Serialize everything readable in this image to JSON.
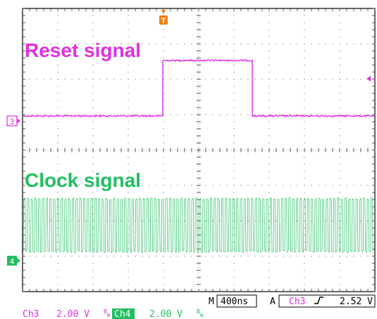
{
  "overlay": {
    "reset_label": "Reset signal",
    "clock_label": "Clock signal"
  },
  "markers": {
    "trigger_marker": "T",
    "ch3_marker": "3",
    "ch4_marker": "4"
  },
  "status": {
    "timebase_prefix": "M",
    "timebase": "400ns",
    "trigger_prefix": "A",
    "trigger_source": "Ch3",
    "trigger_slope_icon": "rising-edge-icon",
    "trigger_level": "2.52 V",
    "ch3_label": "Ch3",
    "ch3_scale": "2.00 V",
    "ch4_label": "Ch4",
    "ch4_scale": "2.00 V",
    "bw_marker": "B",
    "bw_sub": "W"
  },
  "colors": {
    "ch3": "#e030e0",
    "ch4": "#20c060",
    "marker_orange": "#f08010"
  }
}
